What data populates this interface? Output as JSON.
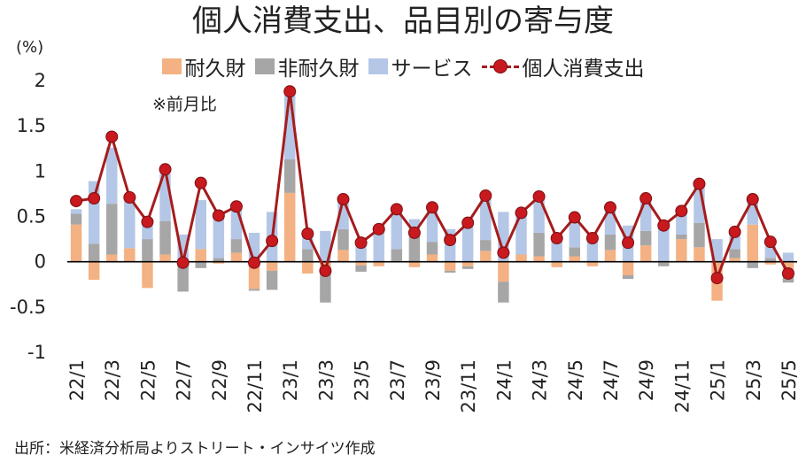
{
  "title": "個人消費支出、品目別の寄与度",
  "unit": "(%)",
  "note": "※前月比",
  "source": "出所：米経済分析局よりストリート・インサイツ作成",
  "legend": [
    {
      "label": "耐久財",
      "color": "#f4b183",
      "kind": "bar"
    },
    {
      "label": "非耐久財",
      "color": "#a6a6a6",
      "kind": "bar"
    },
    {
      "label": "サービス",
      "color": "#b4c7e7",
      "kind": "bar"
    },
    {
      "label": "個人消費支出",
      "color": "#c8191e",
      "kind": "line"
    }
  ],
  "chart_data": {
    "type": "bar",
    "stacked": true,
    "ylim": [
      -1,
      2
    ],
    "yticks": [
      -1,
      -0.5,
      0,
      0.5,
      1,
      1.5,
      2
    ],
    "ytick_labels": [
      "-1",
      "-0.5",
      "0",
      "0.5",
      "1",
      "1.5",
      "2"
    ],
    "xtick_labels": [
      "22/1",
      "22/3",
      "22/5",
      "22/7",
      "22/9",
      "22/11",
      "23/1",
      "23/3",
      "23/5",
      "23/7",
      "23/9",
      "23/11",
      "24/1",
      "24/3",
      "24/5",
      "24/7",
      "24/9",
      "24/11",
      "25/1",
      "25/3",
      "25/5"
    ],
    "categories": [
      "22/1",
      "22/2",
      "22/3",
      "22/4",
      "22/5",
      "22/6",
      "22/7",
      "22/8",
      "22/9",
      "22/10",
      "22/11",
      "22/12",
      "23/1",
      "23/2",
      "23/3",
      "23/4",
      "23/5",
      "23/6",
      "23/7",
      "23/8",
      "23/9",
      "23/10",
      "23/11",
      "23/12",
      "24/1",
      "24/2",
      "24/3",
      "24/4",
      "24/5",
      "24/6",
      "24/7",
      "24/8",
      "24/9",
      "24/10",
      "24/11",
      "24/12",
      "25/1",
      "25/2",
      "25/3",
      "25/4",
      "25/5"
    ],
    "series": [
      {
        "name": "耐久財",
        "color": "#f4b183",
        "type": "bar",
        "values": [
          0.41,
          -0.2,
          0.08,
          0.15,
          -0.29,
          0.08,
          -0.03,
          0.14,
          -0.02,
          0.1,
          -0.3,
          -0.1,
          0.76,
          -0.13,
          -0.07,
          0.13,
          -0.04,
          -0.05,
          0.01,
          -0.06,
          0.08,
          -0.1,
          -0.05,
          0.12,
          -0.22,
          0.08,
          0.06,
          -0.06,
          0.06,
          -0.05,
          0.13,
          -0.15,
          0.18,
          -0.01,
          0.25,
          0.16,
          -0.43,
          0.04,
          0.41,
          -0.03,
          -0.12
        ]
      },
      {
        "name": "非耐久財",
        "color": "#a6a6a6",
        "type": "bar",
        "values": [
          0.12,
          0.2,
          0.56,
          0.0,
          0.25,
          0.37,
          -0.3,
          -0.07,
          0.04,
          0.15,
          -0.02,
          -0.21,
          0.37,
          0.14,
          -0.38,
          0.23,
          -0.07,
          0.0,
          0.13,
          0.3,
          0.14,
          -0.02,
          -0.03,
          0.12,
          -0.23,
          0.0,
          0.26,
          0.0,
          0.1,
          0.0,
          0.17,
          -0.04,
          0.16,
          -0.04,
          0.05,
          0.27,
          0.0,
          0.1,
          -0.07,
          0.04,
          -0.11
        ]
      },
      {
        "name": "サービス",
        "color": "#b4c7e7",
        "type": "bar",
        "values": [
          0.05,
          0.69,
          0.62,
          0.55,
          0.23,
          0.52,
          0.3,
          0.54,
          0.47,
          0.35,
          0.32,
          0.55,
          0.74,
          0.18,
          0.34,
          0.34,
          0.24,
          0.38,
          0.44,
          0.17,
          0.37,
          0.36,
          0.44,
          0.49,
          0.55,
          0.46,
          0.39,
          0.26,
          0.33,
          0.25,
          0.31,
          0.4,
          0.37,
          0.4,
          0.26,
          0.43,
          0.25,
          0.18,
          0.28,
          0.13,
          0.1
        ]
      },
      {
        "name": "個人消費支出",
        "color": "#c8191e",
        "type": "line",
        "values": [
          0.67,
          0.7,
          1.38,
          0.71,
          0.44,
          1.02,
          -0.01,
          0.87,
          0.51,
          0.61,
          -0.01,
          0.23,
          1.88,
          0.31,
          -0.1,
          0.69,
          0.21,
          0.36,
          0.58,
          0.32,
          0.6,
          0.24,
          0.43,
          0.73,
          0.1,
          0.54,
          0.72,
          0.26,
          0.49,
          0.26,
          0.6,
          0.21,
          0.7,
          0.4,
          0.56,
          0.86,
          -0.18,
          0.33,
          0.69,
          0.22,
          -0.13
        ]
      }
    ],
    "grid": false,
    "legend_position": "top"
  }
}
